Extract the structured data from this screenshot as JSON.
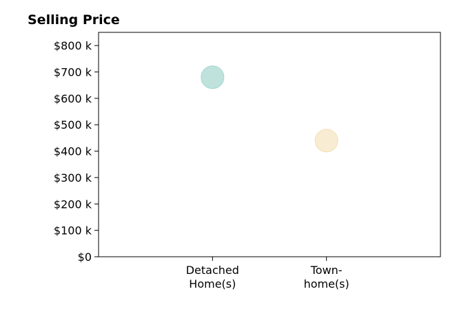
{
  "chart_data": {
    "type": "scatter",
    "title": "Selling Price",
    "xlabel": "",
    "ylabel": "",
    "categories": [
      [
        "Detached",
        "Home(s)"
      ],
      [
        "Town-",
        "home(s)"
      ]
    ],
    "x_range": [
      -1,
      2
    ],
    "ylim": [
      0,
      850000
    ],
    "y_ticks": [
      0,
      100000,
      200000,
      300000,
      400000,
      500000,
      600000,
      700000,
      800000
    ],
    "y_tick_labels": [
      "$0",
      "$100 k",
      "$200 k",
      "$300 k",
      "$400 k",
      "$500 k",
      "$600 k",
      "$700 k",
      "$800 k"
    ],
    "grid": false,
    "legend": "none",
    "points": [
      {
        "category_index": 0,
        "value": 680000,
        "color": "#bfe2dd",
        "edge_color": "#a3d6cf"
      },
      {
        "category_index": 1,
        "value": 440000,
        "color": "#f8ecd2",
        "edge_color": "#f2dfb6"
      }
    ]
  }
}
